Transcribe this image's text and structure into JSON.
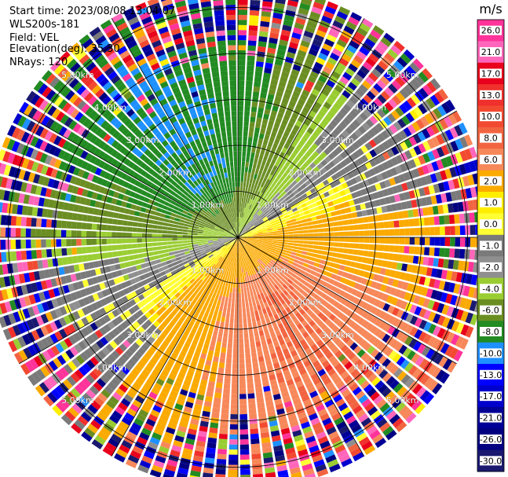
{
  "header": {
    "start_time": "Start time: 2023/08/08 13:04:07",
    "instrument": "WLS200s-181",
    "field": "Field: VEL",
    "elevation": "Elevation(deg): 35.30",
    "nrays": "NRays: 120"
  },
  "chart_data": {
    "type": "heatmap",
    "subtype": "radar-ppi",
    "field": "VEL",
    "elevation_deg": 35.3,
    "n_rays": 120,
    "range_max_km": 5.5,
    "range_rings_km": [
      1.0,
      2.0,
      3.0,
      4.0,
      5.0
    ],
    "range_ring_labels": [
      "1.00km",
      "2.00km",
      "3.00km",
      "4.00km",
      "5.00km"
    ],
    "spokes_deg": [
      0,
      30,
      60,
      90,
      120,
      150,
      180,
      210,
      240,
      270,
      300,
      330
    ],
    "colorbar": {
      "title": "m/s",
      "tick_labels": [
        "26.0",
        "21.0",
        "17.0",
        "13.0",
        "10.0",
        "8.0",
        "6.0",
        "2.0",
        "1.0",
        "0.0",
        "-1.0",
        "-2.0",
        "-4.0",
        "-6.0",
        "-8.0",
        "-10.0",
        "-13.0",
        "-17.0",
        "-21.0",
        "-26.0",
        "-30.0"
      ],
      "bins": [
        {
          "from": 26,
          "to": 30,
          "color": "#ff3399"
        },
        {
          "from": 21,
          "to": 26,
          "color": "#ff66bb"
        },
        {
          "from": 17,
          "to": 21,
          "color": "#e8001c"
        },
        {
          "from": 13,
          "to": 17,
          "color": "#f0302c"
        },
        {
          "from": 10,
          "to": 13,
          "color": "#f24a30"
        },
        {
          "from": 8,
          "to": 10,
          "color": "#f26440"
        },
        {
          "from": 6,
          "to": 8,
          "color": "#f7885a"
        },
        {
          "from": 2,
          "to": 6,
          "color": "#fbaa00"
        },
        {
          "from": 1,
          "to": 2,
          "color": "#ffee00"
        },
        {
          "from": 0,
          "to": 1,
          "color": "#ffff33"
        },
        {
          "from": -1,
          "to": 0,
          "color": "#7a7a7a"
        },
        {
          "from": -2,
          "to": -1,
          "color": "#8f8f8f"
        },
        {
          "from": -4,
          "to": -2,
          "color": "#9acd32"
        },
        {
          "from": -6,
          "to": -4,
          "color": "#6b8e23"
        },
        {
          "from": -8,
          "to": -6,
          "color": "#228b22"
        },
        {
          "from": -10,
          "to": -8,
          "color": "#1e90ff"
        },
        {
          "from": -13,
          "to": -10,
          "color": "#0000ff"
        },
        {
          "from": -17,
          "to": -13,
          "color": "#0000cd"
        },
        {
          "from": -21,
          "to": -17,
          "color": "#000096"
        },
        {
          "from": -26,
          "to": -21,
          "color": "#000080"
        },
        {
          "from": -30,
          "to": -26,
          "color": "#191970"
        }
      ]
    },
    "velocity_pattern": {
      "description_of_field": "approaching flow (negative, greens/blue) from west-north, receding flow (positive, yellow/orange) to east-south; noisy beyond ~4.3 km",
      "positive_core_max": 8.0,
      "negative_core_min": -8.0,
      "clean_range_km": 4.3
    }
  },
  "colors": {
    "ring": "#000000",
    "background": "#ffffff"
  }
}
